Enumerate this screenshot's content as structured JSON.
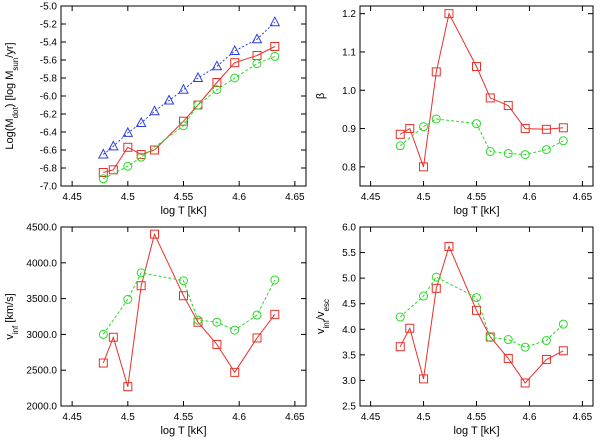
{
  "colors": {
    "red": "#e8302a",
    "green": "#2ed82a",
    "blue": "#2d3fe0",
    "axis": "#000000"
  },
  "chart_data": [
    {
      "type": "line",
      "panel": "top-left",
      "xlabel": "log T [kK]",
      "ylabel": "Log(M_dot) [log M_sun/yr]",
      "ylabel_parts": {
        "main": "Log(M",
        "sub1": "dot",
        "mid": ") [log M",
        "sub2": "sun",
        "end": "/yr]"
      },
      "xlim": [
        4.44,
        4.66
      ],
      "ylim": [
        -7.0,
        -5.0
      ],
      "xticks": [
        4.45,
        4.5,
        4.55,
        4.6,
        4.65
      ],
      "xtick_labels": [
        "4.45",
        "4.5",
        "4.55",
        "4.6",
        "4.65"
      ],
      "yticks": [
        -7.0,
        -6.8,
        -6.6,
        -6.4,
        -6.2,
        -6.0,
        -5.8,
        -5.6,
        -5.4,
        -5.2,
        -5.0
      ],
      "ytick_labels": [
        "-7.0",
        "-6.8",
        "-6.6",
        "-6.4",
        "-6.2",
        "-6.0",
        "-5.8",
        "-5.6",
        "-5.4",
        "-5.2",
        "-5.0"
      ],
      "series": [
        {
          "name": "red squares",
          "color": "red",
          "marker": "square",
          "dashed": false,
          "x": [
            4.478,
            4.487,
            4.5,
            4.512,
            4.524,
            4.55,
            4.563,
            4.58,
            4.596,
            4.616,
            4.632
          ],
          "y": [
            -6.85,
            -6.82,
            -6.57,
            -6.65,
            -6.6,
            -6.28,
            -6.1,
            -5.85,
            -5.63,
            -5.55,
            -5.45
          ]
        },
        {
          "name": "green circles",
          "color": "green",
          "marker": "circle",
          "dashed": true,
          "x": [
            4.478,
            4.5,
            4.512,
            4.55,
            4.563,
            4.58,
            4.596,
            4.616,
            4.632
          ],
          "y": [
            -6.92,
            -6.78,
            -6.68,
            -6.33,
            -6.1,
            -5.93,
            -5.8,
            -5.64,
            -5.56
          ]
        },
        {
          "name": "blue triangles",
          "color": "blue",
          "marker": "triangle",
          "dashed": true,
          "x": [
            4.478,
            4.487,
            4.5,
            4.512,
            4.524,
            4.537,
            4.55,
            4.563,
            4.58,
            4.596,
            4.616,
            4.632
          ],
          "y": [
            -6.65,
            -6.56,
            -6.41,
            -6.3,
            -6.17,
            -6.05,
            -5.93,
            -5.8,
            -5.67,
            -5.5,
            -5.37,
            -5.18
          ]
        }
      ]
    },
    {
      "type": "line",
      "panel": "top-right",
      "xlabel": "log T [kK]",
      "ylabel": "β",
      "xlim": [
        4.44,
        4.66
      ],
      "ylim": [
        0.75,
        1.22
      ],
      "xticks": [
        4.45,
        4.5,
        4.55,
        4.6,
        4.65
      ],
      "xtick_labels": [
        "4.45",
        "4.5",
        "4.55",
        "4.6",
        "4.65"
      ],
      "yticks": [
        0.8,
        0.9,
        1.0,
        1.1,
        1.2
      ],
      "ytick_labels": [
        "0.8",
        "0.9",
        "1.0",
        "1.1",
        "1.2"
      ],
      "series": [
        {
          "name": "red squares",
          "color": "red",
          "marker": "square",
          "dashed": false,
          "x": [
            4.478,
            4.487,
            4.5,
            4.512,
            4.524,
            4.55,
            4.563,
            4.58,
            4.596,
            4.616,
            4.632
          ],
          "y": [
            0.885,
            0.9,
            0.8,
            1.048,
            1.2,
            1.062,
            0.98,
            0.96,
            0.9,
            0.898,
            0.902
          ]
        },
        {
          "name": "green circles",
          "color": "green",
          "marker": "circle",
          "dashed": true,
          "x": [
            4.478,
            4.5,
            4.512,
            4.55,
            4.563,
            4.58,
            4.596,
            4.616,
            4.632
          ],
          "y": [
            0.855,
            0.905,
            0.925,
            0.913,
            0.84,
            0.835,
            0.832,
            0.845,
            0.868
          ]
        }
      ]
    },
    {
      "type": "line",
      "panel": "bottom-left",
      "xlabel": "log T [kK]",
      "ylabel": "v_inf [km/s]",
      "ylabel_parts": {
        "main": "v",
        "sub": "inf",
        "end": " [km/s]"
      },
      "xlim": [
        4.44,
        4.66
      ],
      "ylim": [
        2000,
        4500
      ],
      "xticks": [
        4.45,
        4.5,
        4.55,
        4.6,
        4.65
      ],
      "xtick_labels": [
        "4.45",
        "4.5",
        "4.55",
        "4.6",
        "4.65"
      ],
      "yticks": [
        2000,
        2500,
        3000,
        3500,
        4000,
        4500
      ],
      "ytick_labels": [
        "2000.0",
        "2500.0",
        "3000.0",
        "3500.0",
        "4000.0",
        "4500.0"
      ],
      "series": [
        {
          "name": "red squares",
          "color": "red",
          "marker": "square",
          "dashed": false,
          "x": [
            4.478,
            4.487,
            4.5,
            4.512,
            4.524,
            4.55,
            4.563,
            4.58,
            4.596,
            4.616,
            4.632
          ],
          "y": [
            2600,
            2960,
            2270,
            3680,
            4400,
            3540,
            3170,
            2860,
            2470,
            2950,
            3280
          ]
        },
        {
          "name": "green circles",
          "color": "green",
          "marker": "circle",
          "dashed": true,
          "x": [
            4.478,
            4.5,
            4.512,
            4.55,
            4.563,
            4.58,
            4.596,
            4.616,
            4.632
          ],
          "y": [
            3000,
            3490,
            3860,
            3750,
            3200,
            3170,
            3060,
            3270,
            3760
          ]
        }
      ]
    },
    {
      "type": "line",
      "panel": "bottom-right",
      "xlabel": "log T [kK]",
      "ylabel": "v_inf/v_esc",
      "ylabel_parts": {
        "main": "v",
        "sub1": "inf",
        "mid": "/v",
        "sub2": "esc",
        "end": ""
      },
      "xlim": [
        4.44,
        4.66
      ],
      "ylim": [
        2.5,
        6.0
      ],
      "xticks": [
        4.45,
        4.5,
        4.55,
        4.6,
        4.65
      ],
      "xtick_labels": [
        "4.45",
        "4.5",
        "4.55",
        "4.6",
        "4.65"
      ],
      "yticks": [
        2.5,
        3.0,
        3.5,
        4.0,
        4.5,
        5.0,
        5.5,
        6.0
      ],
      "ytick_labels": [
        "2.5",
        "3.0",
        "3.5",
        "4.0",
        "4.5",
        "5.0",
        "5.5",
        "6.0"
      ],
      "series": [
        {
          "name": "red squares",
          "color": "red",
          "marker": "square",
          "dashed": false,
          "x": [
            4.478,
            4.487,
            4.5,
            4.512,
            4.524,
            4.55,
            4.563,
            4.58,
            4.596,
            4.616,
            4.632
          ],
          "y": [
            3.66,
            4.02,
            3.03,
            4.8,
            5.62,
            4.37,
            3.85,
            3.43,
            2.95,
            3.41,
            3.58
          ]
        },
        {
          "name": "green circles",
          "color": "green",
          "marker": "circle",
          "dashed": true,
          "x": [
            4.478,
            4.5,
            4.512,
            4.55,
            4.563,
            4.58,
            4.596,
            4.616,
            4.632
          ],
          "y": [
            4.24,
            4.65,
            5.02,
            4.62,
            3.84,
            3.8,
            3.65,
            3.78,
            4.1
          ]
        }
      ]
    }
  ]
}
